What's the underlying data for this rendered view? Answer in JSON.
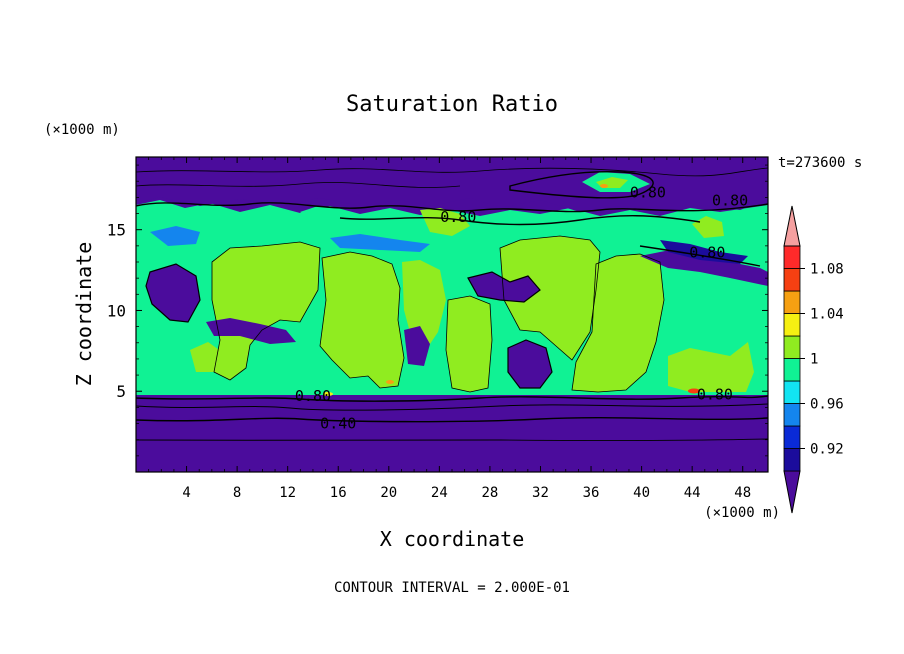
{
  "chart_data": {
    "type": "heatmap",
    "title": "Saturation Ratio",
    "xlabel": "X coordinate",
    "ylabel": "Z coordinate",
    "x_unit": "(×1000 m)",
    "y_unit": "(×1000 m)",
    "time_label": "t=273600 s",
    "footer": "CONTOUR INTERVAL = 2.000E-01",
    "xlim": [
      0,
      50
    ],
    "ylim": [
      0,
      19.5
    ],
    "x_ticks": [
      4,
      8,
      12,
      16,
      20,
      24,
      28,
      32,
      36,
      40,
      44,
      48
    ],
    "y_ticks": [
      5,
      10,
      15
    ],
    "colorbar": {
      "levels": [
        0.9,
        0.92,
        0.94,
        0.96,
        0.98,
        1.0,
        1.02,
        1.04,
        1.06,
        1.08,
        1.1
      ],
      "tick_labels": [
        "0.92",
        "0.96",
        "1",
        "1.04",
        "1.08"
      ],
      "tick_values": [
        0.92,
        0.96,
        1.0,
        1.04,
        1.08
      ],
      "colors": [
        "#4b0c9c",
        "#1b0c9c",
        "#0a2ad6",
        "#1485ee",
        "#12e4f2",
        "#10f294",
        "#90ec20",
        "#f6f012",
        "#f6a012",
        "#f64012",
        "#ff2a2a",
        "#f5a0a0"
      ]
    },
    "contour_labels": [
      {
        "text": "0.80",
        "x": 40.5,
        "z": 17.3
      },
      {
        "text": "0.80",
        "x": 47.0,
        "z": 16.8
      },
      {
        "text": "0.80",
        "x": 25.5,
        "z": 15.8
      },
      {
        "text": "0.80",
        "x": 45.2,
        "z": 13.6
      },
      {
        "text": "0.80",
        "x": 14.0,
        "z": 4.7
      },
      {
        "text": "0.80",
        "x": 45.8,
        "z": 4.8
      },
      {
        "text": "0.40",
        "x": 16.0,
        "z": 3.0
      }
    ],
    "lower_band": {
      "purple_top": 5.0,
      "contour_080": 4.7,
      "contour_060": 4.2,
      "contour_040": 3.1,
      "contour_020": 2.3
    },
    "layer_values": {
      "boundary_layer": 1.0,
      "dry_mid": 0.8,
      "upper_moist": 0.99,
      "below_cloud": 0.4
    }
  }
}
